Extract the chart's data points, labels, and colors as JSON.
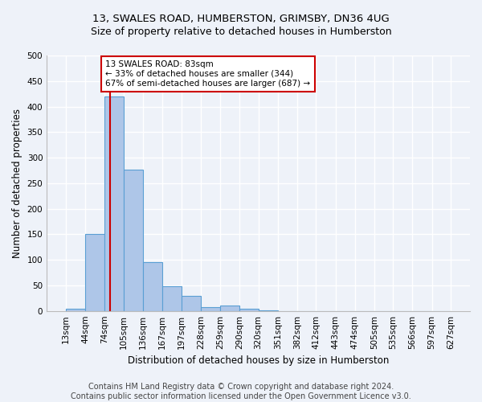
{
  "title1": "13, SWALES ROAD, HUMBERSTON, GRIMSBY, DN36 4UG",
  "title2": "Size of property relative to detached houses in Humberston",
  "xlabel": "Distribution of detached houses by size in Humberston",
  "ylabel": "Number of detached properties",
  "footer1": "Contains HM Land Registry data © Crown copyright and database right 2024.",
  "footer2": "Contains public sector information licensed under the Open Government Licence v3.0.",
  "annotation_title": "13 SWALES ROAD: 83sqm",
  "annotation_line1": "← 33% of detached houses are smaller (344)",
  "annotation_line2": "67% of semi-detached houses are larger (687) →",
  "bar_edges": [
    13,
    44,
    74,
    105,
    136,
    167,
    197,
    228,
    259,
    290,
    320,
    351,
    382,
    412,
    443,
    474,
    505,
    535,
    566,
    597,
    627
  ],
  "bar_heights": [
    5,
    150,
    420,
    277,
    96,
    48,
    29,
    7,
    10,
    4,
    1,
    0,
    0,
    0,
    0,
    0,
    0,
    0,
    0,
    0
  ],
  "bar_color": "#aec6e8",
  "bar_edge_color": "#5a9fd4",
  "vline_color": "#cc0000",
  "vline_x": 83,
  "annotation_box_color": "#cc0000",
  "ylim": [
    0,
    500
  ],
  "yticks": [
    0,
    50,
    100,
    150,
    200,
    250,
    300,
    350,
    400,
    450,
    500
  ],
  "bg_color": "#eef2f9",
  "grid_color": "#ffffff",
  "title_fontsize": 9.5,
  "subtitle_fontsize": 9,
  "axis_label_fontsize": 8.5,
  "tick_fontsize": 7.5,
  "footer_fontsize": 7,
  "annotation_fontsize": 7.5
}
